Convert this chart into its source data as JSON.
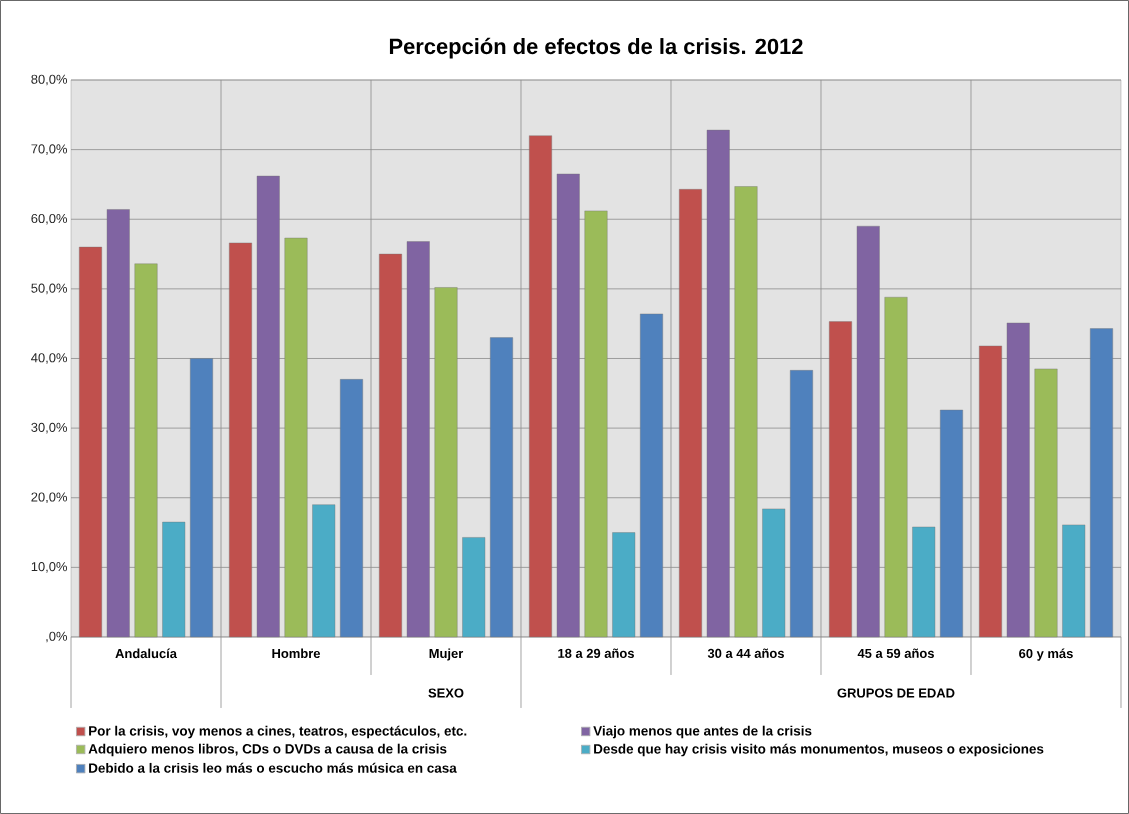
{
  "chart_data": {
    "type": "bar",
    "title": "Percepción de efectos de la crisis. 2012",
    "categories": [
      "Andalucía",
      "Hombre",
      "Mujer",
      "18 a 29 años",
      "30 a 44 años",
      "45 a 59 años",
      "60 y más"
    ],
    "series": [
      {
        "name": "Por la crisis, voy menos a cines, teatros, espectáculos, etc.",
        "color": "#c0504d",
        "values": [
          56.0,
          56.6,
          55.0,
          72.0,
          64.3,
          45.3,
          41.8
        ]
      },
      {
        "name": "Viajo menos que antes de la crisis",
        "color": "#8064a2",
        "values": [
          61.4,
          66.2,
          56.8,
          66.5,
          72.8,
          59.0,
          45.1
        ]
      },
      {
        "name": "Adquiero menos libros, CDs o DVDs a causa de la crisis",
        "color": "#9bbb59",
        "values": [
          53.6,
          57.3,
          50.2,
          61.2,
          64.7,
          48.8,
          38.5
        ]
      },
      {
        "name": "Desde que hay crisis visito más monumentos, museos o exposiciones",
        "color": "#4bacc6",
        "values": [
          16.5,
          19.0,
          14.3,
          15.0,
          18.4,
          15.8,
          16.1
        ]
      },
      {
        "name": "Debido a la crisis leo más o escucho más música en casa",
        "color": "#4f81bd",
        "values": [
          40.0,
          37.0,
          43.0,
          46.4,
          38.3,
          32.6,
          44.3
        ]
      }
    ],
    "annotations": [
      "SEXO",
      "GRUPOS DE EDAD"
    ],
    "ylim": [
      0,
      80
    ],
    "yticks": [
      {
        "value": 0,
        "label": ",0%"
      },
      {
        "value": 10,
        "label": "10,0%"
      },
      {
        "value": 20,
        "label": "20,0%"
      },
      {
        "value": 30,
        "label": "30,0%"
      },
      {
        "value": 40,
        "label": "40,0%"
      },
      {
        "value": 50,
        "label": "50,0%"
      },
      {
        "value": 60,
        "label": "60,0%"
      },
      {
        "value": 70,
        "label": "70,0%"
      },
      {
        "value": 80,
        "label": "80,0%"
      }
    ],
    "grid": true,
    "legend": "bottom"
  }
}
